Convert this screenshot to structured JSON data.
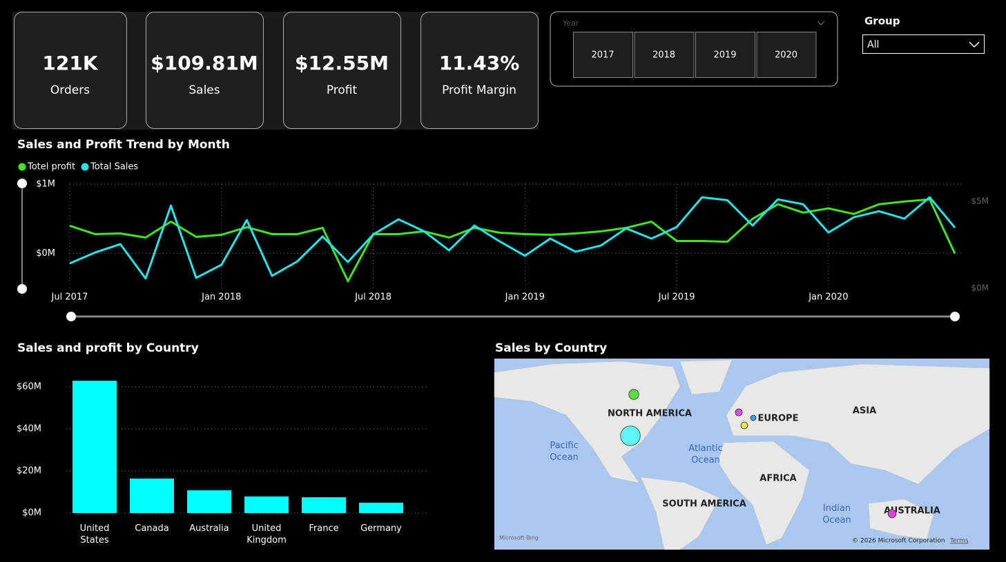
{
  "kpis": [
    {
      "value": "121K",
      "label": "Orders"
    },
    {
      "value": "$109.81M",
      "label": "Sales"
    },
    {
      "value": "$12.55M",
      "label": "Profit"
    },
    {
      "value": "11.43%",
      "label": "Profit Margin"
    }
  ],
  "year_slicer": {
    "title": "Year",
    "options": [
      "2017",
      "2018",
      "2019",
      "2020"
    ]
  },
  "group_filter": {
    "label": "Group",
    "value": "All"
  },
  "chart_data": [
    {
      "type": "line",
      "title": "Sales and Profit Trend by Month",
      "categories": [
        "Jul 2017",
        null,
        null,
        null,
        null,
        null,
        "Jan 2018",
        null,
        null,
        null,
        null,
        null,
        "Jul 2018",
        null,
        null,
        null,
        null,
        null,
        "Jan 2019",
        null,
        null,
        null,
        null,
        null,
        "Jul 2019",
        null,
        null,
        null,
        null,
        null,
        "Jan 2020",
        null,
        null,
        null,
        null,
        null
      ],
      "series": [
        {
          "name": "Totel profit",
          "color": "#3ee81a",
          "values": [
            0.4,
            0.28,
            0.29,
            0.23,
            0.46,
            0.24,
            0.27,
            0.38,
            0.28,
            0.28,
            0.37,
            -0.4,
            0.28,
            0.28,
            0.32,
            0.23,
            0.37,
            0.3,
            0.28,
            0.27,
            0.29,
            0.32,
            0.37,
            0.46,
            0.18,
            0.18,
            0.17,
            0.5,
            0.71,
            0.59,
            0.65,
            0.57,
            0.71,
            0.75,
            0.78,
            0.0
          ]
        },
        {
          "name": "Total Sales",
          "color": "#1ee8ee",
          "axis": "y2",
          "values": [
            1.43,
            2.06,
            2.54,
            0.56,
            4.76,
            0.6,
            1.35,
            3.93,
            0.71,
            1.55,
            2.98,
            1.51,
            3.1,
            3.97,
            3.29,
            2.18,
            3.61,
            2.7,
            1.87,
            2.86,
            2.1,
            2.46,
            3.45,
            2.86,
            3.53,
            5.24,
            5.08,
            3.61,
            5.12,
            4.84,
            3.21,
            4.09,
            4.44,
            4.01,
            5.24,
            3.49
          ]
        }
      ],
      "ylim": [
        -0.5,
        1
      ],
      "yticks": [
        {
          "value": 0,
          "label": "$0M"
        },
        {
          "value": 1,
          "label": "$1M"
        }
      ],
      "y2lim": [
        0,
        6
      ],
      "y2ticks": [
        {
          "value": 0,
          "label": "$0M"
        },
        {
          "value": 5,
          "label": "$5M"
        }
      ],
      "grid": true,
      "legend": "top-left"
    },
    {
      "type": "bar",
      "title": "Sales and profit by Country",
      "categories": [
        "United States",
        "Canada",
        "Australia",
        "United Kingdom",
        "France",
        "Germany"
      ],
      "values": [
        62.9,
        16.4,
        10.8,
        7.9,
        7.5,
        4.9
      ],
      "color": "#00ffff",
      "ylim": [
        0,
        65
      ],
      "yticks": [
        {
          "value": 0,
          "label": "$0M"
        },
        {
          "value": 20,
          "label": "$20M"
        },
        {
          "value": 40,
          "label": "$40M"
        },
        {
          "value": 60,
          "label": "$60M"
        }
      ],
      "grid": true
    }
  ],
  "map": {
    "title": "Sales by Country",
    "regions": [
      "NORTH AMERICA",
      "EUROPE",
      "ASIA",
      "AFRICA",
      "SOUTH AMERICA",
      "AUSTRALIA"
    ],
    "oceans": [
      "Pacific Ocean",
      "Atlantic Ocean",
      "Indian Ocean"
    ],
    "bubble_colors": [
      "#5ff5f5",
      "#57e03c",
      "#e040e0",
      "#d94fe8",
      "#f2e64a",
      "#3b9cf0"
    ],
    "attribution": "Microsoft Bing",
    "copyright": "© 2026 Microsoft Corporation",
    "terms": "Terms"
  }
}
